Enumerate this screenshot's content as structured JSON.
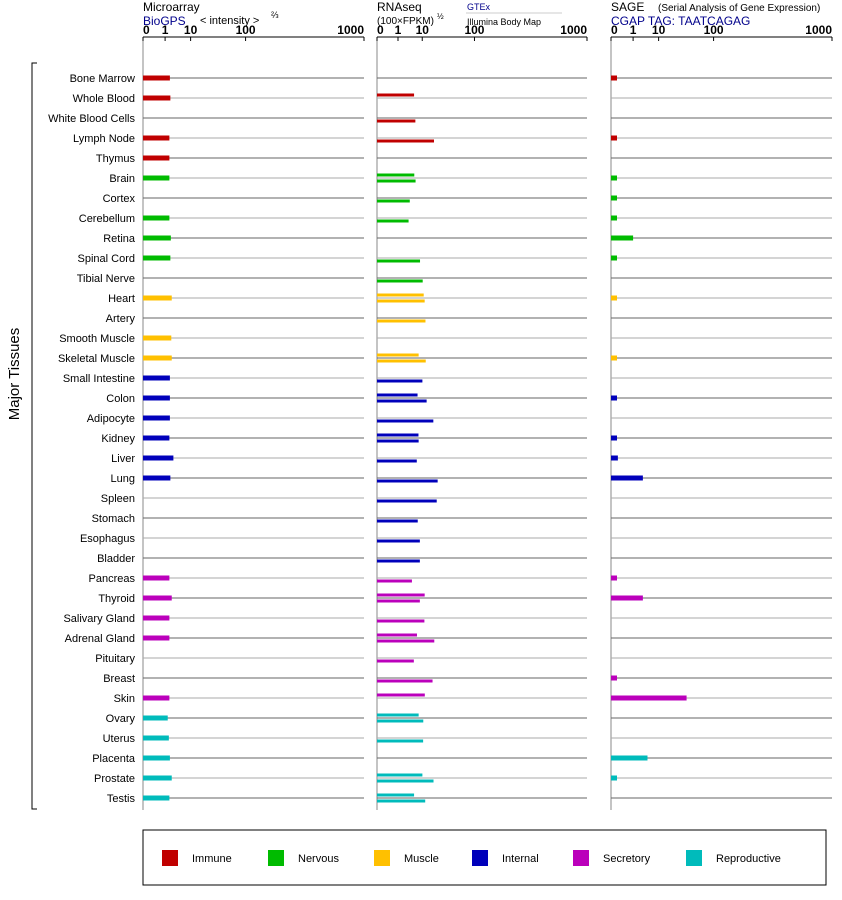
{
  "group_label": "Major Tissues",
  "tissues": [
    {
      "name": "Bone Marrow",
      "cat": "immune"
    },
    {
      "name": "Whole Blood",
      "cat": "immune"
    },
    {
      "name": "White Blood Cells",
      "cat": "immune"
    },
    {
      "name": "Lymph Node",
      "cat": "immune"
    },
    {
      "name": "Thymus",
      "cat": "immune"
    },
    {
      "name": "Brain",
      "cat": "nervous"
    },
    {
      "name": "Cortex",
      "cat": "nervous"
    },
    {
      "name": "Cerebellum",
      "cat": "nervous"
    },
    {
      "name": "Retina",
      "cat": "nervous"
    },
    {
      "name": "Spinal Cord",
      "cat": "nervous"
    },
    {
      "name": "Tibial Nerve",
      "cat": "nervous"
    },
    {
      "name": "Heart",
      "cat": "muscle"
    },
    {
      "name": "Artery",
      "cat": "muscle"
    },
    {
      "name": "Smooth Muscle",
      "cat": "muscle"
    },
    {
      "name": "Skeletal Muscle",
      "cat": "muscle"
    },
    {
      "name": "Small Intestine",
      "cat": "internal"
    },
    {
      "name": "Colon",
      "cat": "internal"
    },
    {
      "name": "Adipocyte",
      "cat": "internal"
    },
    {
      "name": "Kidney",
      "cat": "internal"
    },
    {
      "name": "Liver",
      "cat": "internal"
    },
    {
      "name": "Lung",
      "cat": "internal"
    },
    {
      "name": "Spleen",
      "cat": "internal"
    },
    {
      "name": "Stomach",
      "cat": "internal"
    },
    {
      "name": "Esophagus",
      "cat": "internal"
    },
    {
      "name": "Bladder",
      "cat": "internal"
    },
    {
      "name": "Pancreas",
      "cat": "secretory"
    },
    {
      "name": "Thyroid",
      "cat": "secretory"
    },
    {
      "name": "Salivary Gland",
      "cat": "secretory"
    },
    {
      "name": "Adrenal Gland",
      "cat": "secretory"
    },
    {
      "name": "Pituitary",
      "cat": "secretory"
    },
    {
      "name": "Breast",
      "cat": "secretory"
    },
    {
      "name": "Skin",
      "cat": "secretory"
    },
    {
      "name": "Ovary",
      "cat": "reproductive"
    },
    {
      "name": "Uterus",
      "cat": "reproductive"
    },
    {
      "name": "Placenta",
      "cat": "reproductive"
    },
    {
      "name": "Prostate",
      "cat": "reproductive"
    },
    {
      "name": "Testis",
      "cat": "reproductive"
    }
  ],
  "categories": [
    {
      "key": "immune",
      "label": "Immune",
      "color": "#c00000"
    },
    {
      "key": "nervous",
      "label": "Nervous",
      "color": "#00bb00"
    },
    {
      "key": "muscle",
      "label": "Muscle",
      "color": "#ffc000"
    },
    {
      "key": "internal",
      "label": "Internal",
      "color": "#0000bb"
    },
    {
      "key": "secretory",
      "label": "Secretory",
      "color": "#bb00bb"
    },
    {
      "key": "reproductive",
      "label": "Reproductive",
      "color": "#00bbbb"
    }
  ],
  "panels": [
    {
      "key": "microarray",
      "title": "Microarray",
      "subtitle": "BioGPS",
      "scale_label": "< intensity >",
      "scale_exp": "⅔",
      "ticks": [
        "0",
        "1",
        "10",
        "100",
        "1000"
      ],
      "tick_values": [
        0,
        1,
        10,
        100,
        1000
      ]
    },
    {
      "key": "rnaseq",
      "title": "RNAseq",
      "scale_label": "(100×FPKM)",
      "scale_exp": "½",
      "source_a": "GTEx",
      "source_b": "Illumina Body Map",
      "ticks": [
        "0",
        "1",
        "10",
        "100",
        "1000"
      ],
      "tick_values": [
        0,
        1,
        10,
        100,
        1000
      ]
    },
    {
      "key": "sage",
      "title": "SAGE",
      "title_note": "(Serial Analysis of Gene Expression)",
      "subtitle": "CGAP TAG: TAATCAGAG",
      "ticks": [
        "0",
        "1",
        "10",
        "100",
        "1000"
      ],
      "tick_values": [
        0,
        1,
        10,
        100,
        1000
      ]
    }
  ],
  "chart_data": {
    "type": "bar",
    "scale": "pow 1/3 (0, 1, 10, 100, 1000)",
    "categories": [
      "Bone Marrow",
      "Whole Blood",
      "White Blood Cells",
      "Lymph Node",
      "Thymus",
      "Brain",
      "Cortex",
      "Cerebellum",
      "Retina",
      "Spinal Cord",
      "Tibial Nerve",
      "Heart",
      "Artery",
      "Smooth Muscle",
      "Skeletal Muscle",
      "Small Intestine",
      "Colon",
      "Adipocyte",
      "Kidney",
      "Liver",
      "Lung",
      "Spleen",
      "Stomach",
      "Esophagus",
      "Bladder",
      "Pancreas",
      "Thyroid",
      "Salivary Gland",
      "Adrenal Gland",
      "Pituitary",
      "Breast",
      "Skin",
      "Ovary",
      "Uterus",
      "Placenta",
      "Prostate",
      "Testis"
    ],
    "series": [
      {
        "name": "Microarray",
        "values": [
          1.8,
          1.9,
          null,
          1.7,
          1.7,
          1.7,
          null,
          1.7,
          2.0,
          1.9,
          null,
          2.2,
          null,
          2.1,
          2.2,
          1.8,
          1.8,
          1.8,
          1.7,
          2.6,
          1.9,
          null,
          null,
          null,
          null,
          1.7,
          2.2,
          1.7,
          1.7,
          null,
          null,
          1.7,
          1.4,
          1.6,
          1.8,
          2.2,
          1.7
        ]
      },
      {
        "name": "GTEx",
        "values": [
          null,
          5.5,
          null,
          null,
          null,
          5.6,
          null,
          null,
          null,
          null,
          null,
          11,
          null,
          null,
          7.8,
          null,
          7.2,
          null,
          7.7,
          null,
          null,
          null,
          null,
          null,
          null,
          null,
          11.7,
          null,
          6.9,
          null,
          null,
          11.8,
          7.8,
          null,
          null,
          10.1,
          5.5
        ]
      },
      {
        "name": "Illumina Body Map",
        "values": [
          null,
          null,
          6.1,
          20,
          null,
          6.2,
          3.8,
          3.4,
          null,
          8.6,
          10.3,
          11.7,
          12.3,
          null,
          12.5,
          10.1,
          13.2,
          19.3,
          7.8,
          6.8,
          24.1,
          23,
          7.3,
          8.5,
          8.5,
          4.6,
          8.5,
          11.5,
          20.3,
          5.4,
          18.5,
          null,
          10.7,
          10.6,
          null,
          19.5,
          12.1
        ]
      },
      {
        "name": "SAGE",
        "values": [
          0.02,
          null,
          null,
          0.02,
          null,
          0.02,
          0.02,
          0.02,
          1,
          0.02,
          null,
          0.02,
          null,
          null,
          0.02,
          null,
          0.02,
          null,
          0.02,
          0.03,
          3,
          null,
          null,
          null,
          null,
          0.02,
          3,
          null,
          null,
          null,
          0.02,
          40,
          null,
          null,
          4.5,
          0.02,
          null
        ]
      }
    ],
    "xlim": [
      0,
      1000
    ]
  }
}
